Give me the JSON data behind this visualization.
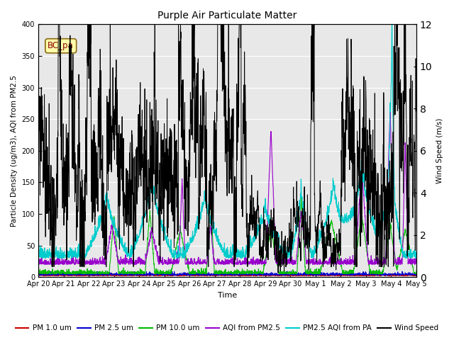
{
  "title": "Purple Air Particulate Matter",
  "xlabel": "Time",
  "ylabel_left": "Particle Density (ug/m3), AQI from PM2.5",
  "ylabel_right": "Wind Speed (m/s)",
  "ylim_left": [
    0,
    400
  ],
  "ylim_right": [
    0,
    12
  ],
  "wind_scale": 33.333,
  "annotation_text": "BC_pa",
  "x_tick_labels": [
    "Apr 20",
    "Apr 21",
    "Apr 22",
    "Apr 23",
    "Apr 24",
    "Apr 25",
    "Apr 26",
    "Apr 27",
    "Apr 28",
    "Apr 29",
    "Apr 30",
    "May 1",
    "May 2",
    "May 3",
    "May 4",
    "May 5"
  ],
  "colors": {
    "pm1": "#cc0000",
    "pm25": "#0000cc",
    "pm10": "#00bb00",
    "aqi_pm25": "#9900cc",
    "aqi_pa": "#00cccc",
    "wind": "#000000"
  },
  "legend_labels": [
    "PM 1.0 um",
    "PM 2.5 um",
    "PM 10.0 um",
    "AQI from PM2.5",
    "PM2.5 AQI from PA",
    "Wind Speed"
  ],
  "bg_color": "#e8e8e8",
  "n_points": 2000,
  "figsize": [
    6.4,
    4.8
  ],
  "dpi": 100
}
